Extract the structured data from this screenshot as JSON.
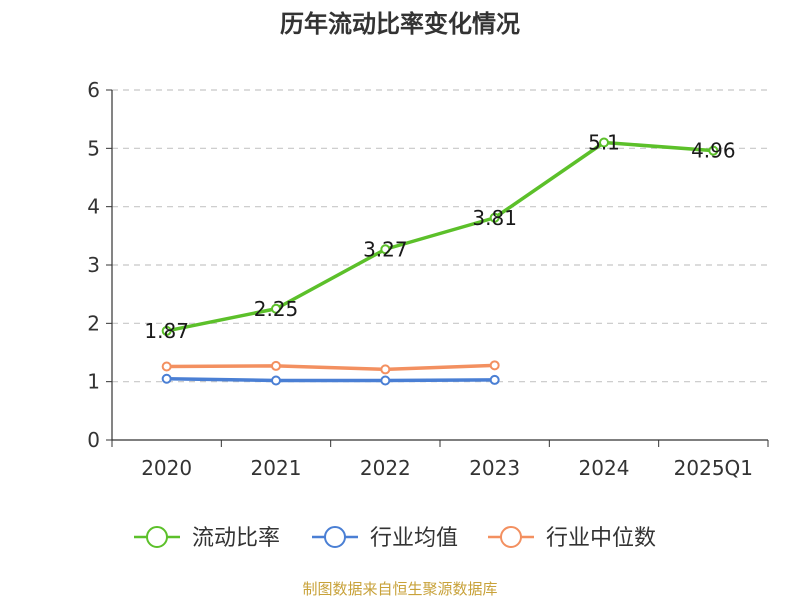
{
  "chart_data": {
    "type": "line",
    "title": "历年流动比率变化情况",
    "categories": [
      "2020",
      "2021",
      "2022",
      "2023",
      "2024",
      "2025Q1"
    ],
    "ylim": [
      0,
      6
    ],
    "yticks": [
      "0",
      "1",
      "2",
      "3",
      "4",
      "5",
      "6"
    ],
    "grid": true,
    "legend_position": "bottom",
    "series": [
      {
        "name": "流动比率",
        "color": "#5cc02a",
        "values": [
          1.87,
          2.25,
          3.27,
          3.81,
          5.1,
          4.96
        ],
        "labels": [
          "1.87",
          "2.25",
          "3.27",
          "3.81",
          "5.1",
          "4.96"
        ]
      },
      {
        "name": "行业均值",
        "color": "#4a7fd4",
        "values": [
          1.05,
          1.02,
          1.02,
          1.03,
          null,
          null
        ]
      },
      {
        "name": "行业中位数",
        "color": "#f39060",
        "values": [
          1.26,
          1.27,
          1.21,
          1.28,
          null,
          null
        ]
      }
    ],
    "source": "制图数据来自恒生聚源数据库"
  }
}
